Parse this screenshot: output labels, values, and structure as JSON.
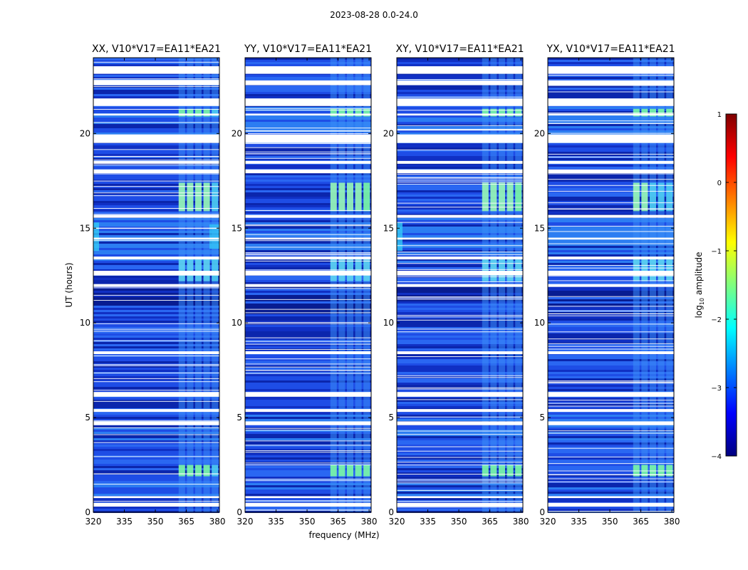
{
  "figure": {
    "suptitle": "2023-08-28 0.0-24.0",
    "xlabel": "frequency (MHz)",
    "ylabel": "UT (hours)"
  },
  "colorbar": {
    "label": "log",
    "label_sub": "10",
    "label_rest": " amplitude",
    "ticks": [
      1,
      0,
      -1,
      -2,
      -3,
      -4
    ],
    "tick_labels": [
      "1",
      "0",
      "−1",
      "−2",
      "−3",
      "−4"
    ],
    "range": [
      -4,
      1
    ],
    "colors": [
      "#00007f",
      "#0000ff",
      "#007fff",
      "#00ffff",
      "#7fff7f",
      "#ffff00",
      "#ff7f00",
      "#ff0000",
      "#7f0000"
    ]
  },
  "chart_data": [
    {
      "type": "heatmap",
      "title": "XX, V10*V17=EA11*EA21",
      "xlabel": "frequency (MHz)",
      "ylabel": "UT (hours)",
      "xlim": [
        320,
        381
      ],
      "ylim": [
        0,
        24
      ],
      "xticks": [
        320,
        335,
        350,
        365,
        380
      ],
      "xtick_labels": [
        "320",
        "335",
        "350",
        "365",
        "380"
      ],
      "yticks": [
        0,
        5,
        10,
        15,
        20
      ],
      "ytick_labels": [
        "0",
        "5",
        "10",
        "15",
        "20"
      ]
    },
    {
      "type": "heatmap",
      "title": "YY, V10*V17=EA11*EA21",
      "xlabel": "frequency (MHz)",
      "ylabel": "UT (hours)",
      "xlim": [
        320,
        381
      ],
      "ylim": [
        0,
        24
      ],
      "xticks": [
        320,
        335,
        350,
        365,
        380
      ],
      "xtick_labels": [
        "320",
        "335",
        "350",
        "365",
        "380"
      ],
      "yticks": [
        0,
        5,
        10,
        15,
        20
      ],
      "ytick_labels": [
        "0",
        "5",
        "10",
        "15",
        "20"
      ]
    },
    {
      "type": "heatmap",
      "title": "XY, V10*V17=EA11*EA21",
      "xlabel": "frequency (MHz)",
      "ylabel": "UT (hours)",
      "xlim": [
        320,
        381
      ],
      "ylim": [
        0,
        24
      ],
      "xticks": [
        320,
        335,
        350,
        365,
        380
      ],
      "xtick_labels": [
        "320",
        "335",
        "350",
        "365",
        "380"
      ],
      "yticks": [
        0,
        5,
        10,
        15,
        20
      ],
      "ytick_labels": [
        "0",
        "5",
        "10",
        "15",
        "20"
      ]
    },
    {
      "type": "heatmap",
      "title": "YX, V10*V17=EA11*EA21",
      "xlabel": "frequency (MHz)",
      "ylabel": "UT (hours)",
      "xlim": [
        320,
        381
      ],
      "ylim": [
        0,
        24
      ],
      "xticks": [
        320,
        335,
        350,
        365,
        380
      ],
      "xtick_labels": [
        "320",
        "335",
        "350",
        "365",
        "380"
      ],
      "yticks": [
        0,
        5,
        10,
        15,
        20
      ],
      "ytick_labels": [
        "0",
        "5",
        "10",
        "15",
        "20"
      ]
    }
  ],
  "flagged_time_ranges_hours": [
    [
      0.3,
      0.5
    ],
    [
      0.75,
      0.85
    ],
    [
      4.6,
      4.8
    ],
    [
      5.3,
      5.45
    ],
    [
      6.1,
      6.35
    ],
    [
      8.35,
      8.5
    ],
    [
      11.9,
      12.05
    ],
    [
      12.5,
      12.75
    ],
    [
      13.35,
      13.5
    ],
    [
      14.4,
      14.5
    ],
    [
      15.55,
      15.7
    ],
    [
      17.9,
      18.1
    ],
    [
      18.4,
      18.55
    ],
    [
      19.5,
      19.95
    ],
    [
      20.95,
      21.05
    ],
    [
      21.45,
      21.85
    ],
    [
      22.55,
      22.8
    ],
    [
      23.15,
      23.55
    ]
  ],
  "rfi_frequency_range_mhz": [
    362,
    381
  ],
  "rfi_bright_time_ranges_hours": [
    [
      1.9,
      2.5
    ],
    [
      15.9,
      17.4
    ],
    [
      20.9,
      21.3
    ],
    [
      12.2,
      13.5
    ]
  ]
}
